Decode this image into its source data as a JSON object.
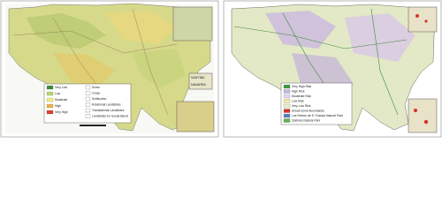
{
  "panels": [
    {
      "legend": {
        "classes": [
          {
            "label": "Very Low",
            "color": "#3a8f3a"
          },
          {
            "label": "Low",
            "color": "#b7d96b"
          },
          {
            "label": "Moderate",
            "color": "#f2ee7a"
          },
          {
            "label": "High",
            "color": "#f0b24a"
          },
          {
            "label": "Very High",
            "color": "#d9432b"
          }
        ],
        "features": [
          "Scree",
          "Creep",
          "Solifluction",
          "Rotational Landslides",
          "Translational Landslides",
          "Landslides for Social Blend"
        ]
      },
      "inset_labels": [
        "SANTIBA",
        "NAVARRA"
      ]
    },
    {
      "legend": {
        "classes": [
          {
            "label": "Very High Risk",
            "color": "#3d9a3d"
          },
          {
            "label": "High Risk",
            "color": "#c7b6de"
          },
          {
            "label": "Moderate Risk",
            "color": "#e6d5ee"
          },
          {
            "label": "Low Risk",
            "color": "#f1eaa0"
          },
          {
            "label": "Very Low Risk",
            "color": "#e7f2c8"
          },
          {
            "label": "Actual Zonal Boundaries",
            "color": "#d6342a"
          },
          {
            "label": "Los Reinos de S. Francia Natural Park",
            "color": "#5a7fc0"
          },
          {
            "label": "Quilmes Natural Park",
            "color": "#6ab04c"
          }
        ]
      }
    }
  ]
}
